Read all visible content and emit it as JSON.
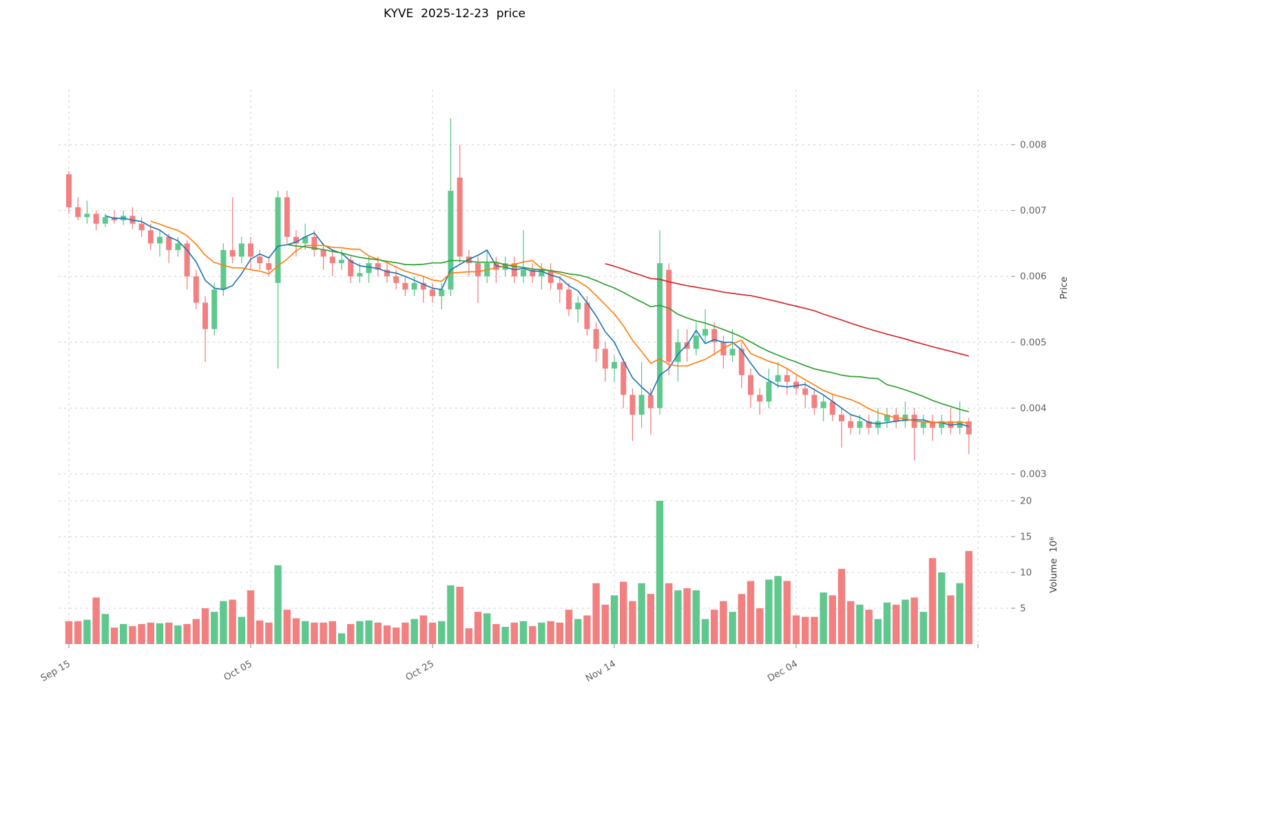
{
  "chart_data": {
    "type": "candlestick",
    "title": "KYVE  2025-12-23  price",
    "price_axis": {
      "label": "Price",
      "ticks": [
        0.003,
        0.004,
        0.005,
        0.006,
        0.007,
        0.008
      ]
    },
    "volume_axis": {
      "label": "Volume  10⁶",
      "ticks": [
        5,
        10,
        15,
        20
      ]
    },
    "x_axis": {
      "ticks": [
        {
          "label": "Sep 15",
          "index": 0
        },
        {
          "label": "Oct 05",
          "index": 20
        },
        {
          "label": "Oct 25",
          "index": 40
        },
        {
          "label": "Nov 14",
          "index": 60
        },
        {
          "label": "Dec 04",
          "index": 80
        },
        {
          "label": "",
          "index": 100
        }
      ]
    },
    "colors": {
      "up": "#5ec88d",
      "down": "#f28080",
      "grid": "#cccccc",
      "tick_mark": "#8a8a8a"
    },
    "moving_averages": [
      {
        "name": "ma-5-line",
        "window": 5,
        "color": "#1f77b4"
      },
      {
        "name": "ma-10-line",
        "window": 10,
        "color": "#ff7f0e"
      },
      {
        "name": "ma-25-line",
        "window": 25,
        "color": "#2ca02c"
      },
      {
        "name": "ma-60-line",
        "window": 60,
        "color": "#d62728"
      }
    ],
    "candles": [
      [
        0.00755,
        0.0076,
        0.00695,
        0.00705
      ],
      [
        0.00705,
        0.0072,
        0.00685,
        0.0069
      ],
      [
        0.0069,
        0.00715,
        0.0068,
        0.00695
      ],
      [
        0.00695,
        0.007,
        0.0067,
        0.0068
      ],
      [
        0.0068,
        0.00695,
        0.00675,
        0.0069
      ],
      [
        0.0069,
        0.007,
        0.0068,
        0.00685
      ],
      [
        0.00685,
        0.007,
        0.00678,
        0.00692
      ],
      [
        0.00692,
        0.00705,
        0.00672,
        0.0068
      ],
      [
        0.0068,
        0.0069,
        0.0066,
        0.0067
      ],
      [
        0.0067,
        0.0068,
        0.0064,
        0.0065
      ],
      [
        0.0065,
        0.0067,
        0.0063,
        0.0066
      ],
      [
        0.0066,
        0.00665,
        0.0062,
        0.0064
      ],
      [
        0.0064,
        0.0066,
        0.0063,
        0.0065
      ],
      [
        0.0065,
        0.00655,
        0.0058,
        0.006
      ],
      [
        0.006,
        0.0061,
        0.0055,
        0.0056
      ],
      [
        0.0056,
        0.0057,
        0.0047,
        0.0052
      ],
      [
        0.0052,
        0.0059,
        0.0051,
        0.0058
      ],
      [
        0.0058,
        0.0065,
        0.0057,
        0.0064
      ],
      [
        0.0064,
        0.0072,
        0.0062,
        0.0063
      ],
      [
        0.0063,
        0.0066,
        0.0062,
        0.0065
      ],
      [
        0.0065,
        0.0066,
        0.0061,
        0.0063
      ],
      [
        0.0063,
        0.0064,
        0.0061,
        0.0062
      ],
      [
        0.0062,
        0.0063,
        0.006,
        0.0061
      ],
      [
        0.0059,
        0.0073,
        0.0046,
        0.0072
      ],
      [
        0.0072,
        0.0073,
        0.0065,
        0.0066
      ],
      [
        0.0066,
        0.0067,
        0.0063,
        0.0065
      ],
      [
        0.0065,
        0.0068,
        0.0064,
        0.0066
      ],
      [
        0.0066,
        0.0067,
        0.0063,
        0.0064
      ],
      [
        0.0064,
        0.0065,
        0.0061,
        0.0063
      ],
      [
        0.0063,
        0.0064,
        0.006,
        0.0062
      ],
      [
        0.0062,
        0.0064,
        0.0061,
        0.00625
      ],
      [
        0.00625,
        0.0063,
        0.0059,
        0.006
      ],
      [
        0.006,
        0.0062,
        0.0059,
        0.00605
      ],
      [
        0.00605,
        0.0063,
        0.0059,
        0.0062
      ],
      [
        0.0062,
        0.0063,
        0.006,
        0.0061
      ],
      [
        0.0061,
        0.0062,
        0.0059,
        0.006
      ],
      [
        0.006,
        0.0061,
        0.0058,
        0.0059
      ],
      [
        0.0059,
        0.006,
        0.0057,
        0.0058
      ],
      [
        0.0058,
        0.006,
        0.0057,
        0.0059
      ],
      [
        0.0059,
        0.006,
        0.0056,
        0.0058
      ],
      [
        0.0058,
        0.0059,
        0.0056,
        0.0057
      ],
      [
        0.0057,
        0.0059,
        0.0055,
        0.0058
      ],
      [
        0.0058,
        0.0084,
        0.0057,
        0.0073
      ],
      [
        0.0075,
        0.008,
        0.0062,
        0.0063
      ],
      [
        0.0063,
        0.0064,
        0.006,
        0.0062
      ],
      [
        0.0062,
        0.0063,
        0.0056,
        0.006
      ],
      [
        0.006,
        0.0064,
        0.0059,
        0.0062
      ],
      [
        0.0062,
        0.0063,
        0.0059,
        0.0061
      ],
      [
        0.0061,
        0.0063,
        0.006,
        0.0062
      ],
      [
        0.0062,
        0.0063,
        0.0059,
        0.006
      ],
      [
        0.006,
        0.0067,
        0.0059,
        0.0061
      ],
      [
        0.0061,
        0.0062,
        0.0059,
        0.006
      ],
      [
        0.006,
        0.0062,
        0.0058,
        0.0061
      ],
      [
        0.0061,
        0.0062,
        0.0058,
        0.0059
      ],
      [
        0.0059,
        0.006,
        0.0056,
        0.0058
      ],
      [
        0.0058,
        0.0059,
        0.0054,
        0.0055
      ],
      [
        0.0055,
        0.0057,
        0.0053,
        0.0056
      ],
      [
        0.0056,
        0.0057,
        0.0051,
        0.0052
      ],
      [
        0.0052,
        0.0053,
        0.0047,
        0.0049
      ],
      [
        0.0049,
        0.005,
        0.0044,
        0.0046
      ],
      [
        0.0046,
        0.0048,
        0.0044,
        0.0047
      ],
      [
        0.0047,
        0.00475,
        0.004,
        0.0042
      ],
      [
        0.0042,
        0.0043,
        0.0035,
        0.0039
      ],
      [
        0.0039,
        0.0047,
        0.0037,
        0.0042
      ],
      [
        0.0042,
        0.0043,
        0.0036,
        0.004
      ],
      [
        0.004,
        0.0067,
        0.0039,
        0.0062
      ],
      [
        0.0061,
        0.0062,
        0.0045,
        0.0047
      ],
      [
        0.0047,
        0.0052,
        0.0044,
        0.005
      ],
      [
        0.005,
        0.0052,
        0.0047,
        0.0049
      ],
      [
        0.0049,
        0.0053,
        0.0048,
        0.0051
      ],
      [
        0.0051,
        0.0055,
        0.005,
        0.0052
      ],
      [
        0.0052,
        0.0053,
        0.0048,
        0.005
      ],
      [
        0.005,
        0.0051,
        0.0046,
        0.0048
      ],
      [
        0.0048,
        0.0052,
        0.0047,
        0.0049
      ],
      [
        0.0049,
        0.005,
        0.0043,
        0.0045
      ],
      [
        0.0045,
        0.0046,
        0.004,
        0.0042
      ],
      [
        0.0042,
        0.0043,
        0.0039,
        0.0041
      ],
      [
        0.0041,
        0.0046,
        0.004,
        0.0044
      ],
      [
        0.0044,
        0.0047,
        0.0043,
        0.0045
      ],
      [
        0.0045,
        0.0046,
        0.0042,
        0.0044
      ],
      [
        0.0044,
        0.0045,
        0.0042,
        0.0043
      ],
      [
        0.0043,
        0.0044,
        0.004,
        0.0042
      ],
      [
        0.0042,
        0.0043,
        0.0039,
        0.004
      ],
      [
        0.004,
        0.0042,
        0.0038,
        0.0041
      ],
      [
        0.0041,
        0.0042,
        0.0038,
        0.0039
      ],
      [
        0.0039,
        0.004,
        0.0034,
        0.0038
      ],
      [
        0.0038,
        0.0039,
        0.0036,
        0.0037
      ],
      [
        0.0037,
        0.0039,
        0.0036,
        0.0038
      ],
      [
        0.0038,
        0.0039,
        0.0036,
        0.0037
      ],
      [
        0.0037,
        0.004,
        0.0036,
        0.0038
      ],
      [
        0.0038,
        0.004,
        0.0037,
        0.0039
      ],
      [
        0.0039,
        0.004,
        0.0037,
        0.0038
      ],
      [
        0.0038,
        0.0041,
        0.0037,
        0.0039
      ],
      [
        0.0039,
        0.004,
        0.0032,
        0.0037
      ],
      [
        0.0037,
        0.0039,
        0.0036,
        0.0038
      ],
      [
        0.0038,
        0.0039,
        0.0035,
        0.0037
      ],
      [
        0.0037,
        0.0039,
        0.0036,
        0.0038
      ],
      [
        0.0038,
        0.004,
        0.0036,
        0.0037
      ],
      [
        0.0037,
        0.0041,
        0.0036,
        0.0038
      ],
      [
        0.0038,
        0.00385,
        0.0033,
        0.0036
      ]
    ],
    "volumes": [
      3.2,
      3.2,
      3.4,
      6.5,
      4.2,
      2.3,
      2.8,
      2.5,
      2.8,
      3.0,
      2.9,
      3.0,
      2.6,
      2.8,
      3.5,
      5.0,
      4.5,
      6.0,
      6.2,
      3.8,
      7.5,
      3.3,
      3.0,
      11.0,
      4.8,
      3.6,
      3.2,
      3.0,
      3.0,
      3.2,
      1.5,
      2.8,
      3.2,
      3.3,
      3.0,
      2.6,
      2.3,
      3.0,
      3.5,
      4.0,
      3.0,
      3.2,
      8.2,
      8.0,
      2.2,
      4.5,
      4.3,
      2.8,
      2.4,
      3.0,
      3.2,
      2.5,
      3.0,
      3.2,
      3.0,
      4.8,
      3.5,
      4.0,
      8.5,
      5.5,
      6.8,
      8.7,
      6.0,
      8.5,
      7.0,
      20.0,
      8.5,
      7.5,
      7.8,
      7.5,
      3.5,
      4.8,
      6.0,
      4.5,
      7.0,
      8.8,
      5.0,
      9.0,
      9.5,
      8.8,
      4.0,
      3.8,
      3.8,
      7.2,
      6.8,
      10.5,
      6.0,
      5.5,
      4.8,
      3.5,
      5.8,
      5.5,
      6.2,
      6.5,
      4.5,
      12.0,
      10.0,
      6.8,
      8.5,
      13.0
    ]
  }
}
